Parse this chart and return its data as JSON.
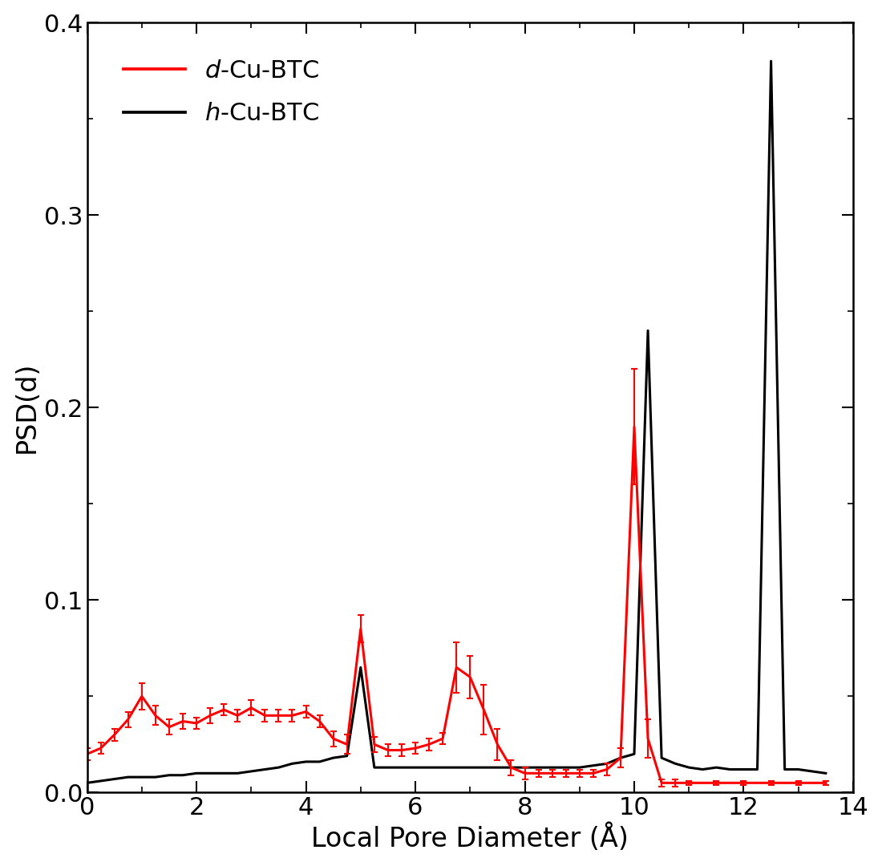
{
  "red_x": [
    0.0,
    0.25,
    0.5,
    0.75,
    1.0,
    1.25,
    1.5,
    1.75,
    2.0,
    2.25,
    2.5,
    2.75,
    3.0,
    3.25,
    3.5,
    3.75,
    4.0,
    4.25,
    4.5,
    4.75,
    5.0,
    5.25,
    5.5,
    5.75,
    6.0,
    6.25,
    6.5,
    6.75,
    7.0,
    7.25,
    7.5,
    7.75,
    8.0,
    8.25,
    8.5,
    8.75,
    9.0,
    9.25,
    9.5,
    9.75,
    10.0,
    10.25,
    10.5,
    10.75,
    11.0,
    11.5,
    12.0,
    12.5,
    13.0,
    13.5
  ],
  "red_y": [
    0.02,
    0.023,
    0.03,
    0.038,
    0.05,
    0.04,
    0.034,
    0.037,
    0.036,
    0.04,
    0.043,
    0.04,
    0.044,
    0.04,
    0.04,
    0.04,
    0.042,
    0.037,
    0.028,
    0.025,
    0.085,
    0.025,
    0.022,
    0.022,
    0.023,
    0.025,
    0.028,
    0.065,
    0.06,
    0.043,
    0.025,
    0.013,
    0.01,
    0.01,
    0.01,
    0.01,
    0.01,
    0.01,
    0.012,
    0.018,
    0.19,
    0.028,
    0.005,
    0.005,
    0.005,
    0.005,
    0.005,
    0.005,
    0.005,
    0.005
  ],
  "red_yerr": [
    0.003,
    0.003,
    0.003,
    0.004,
    0.007,
    0.005,
    0.004,
    0.004,
    0.003,
    0.004,
    0.003,
    0.003,
    0.004,
    0.003,
    0.003,
    0.003,
    0.003,
    0.003,
    0.004,
    0.005,
    0.007,
    0.004,
    0.003,
    0.003,
    0.003,
    0.003,
    0.003,
    0.013,
    0.011,
    0.013,
    0.008,
    0.004,
    0.003,
    0.002,
    0.002,
    0.002,
    0.002,
    0.002,
    0.003,
    0.005,
    0.03,
    0.01,
    0.002,
    0.002,
    0.001,
    0.001,
    0.001,
    0.001,
    0.001,
    0.001
  ],
  "black_x": [
    0.0,
    0.25,
    0.5,
    0.75,
    1.0,
    1.25,
    1.5,
    1.75,
    2.0,
    2.25,
    2.5,
    2.75,
    3.0,
    3.25,
    3.5,
    3.75,
    4.0,
    4.25,
    4.5,
    4.75,
    5.0,
    5.25,
    5.5,
    5.75,
    6.0,
    6.25,
    6.5,
    6.75,
    7.0,
    7.25,
    7.5,
    7.75,
    8.0,
    8.25,
    8.5,
    8.75,
    9.0,
    9.25,
    9.5,
    9.75,
    10.0,
    10.25,
    10.5,
    10.75,
    11.0,
    11.25,
    11.5,
    11.75,
    12.0,
    12.25,
    12.5,
    12.75,
    13.0,
    13.5
  ],
  "black_y": [
    0.005,
    0.006,
    0.007,
    0.008,
    0.008,
    0.008,
    0.009,
    0.009,
    0.01,
    0.01,
    0.01,
    0.01,
    0.011,
    0.012,
    0.013,
    0.015,
    0.016,
    0.016,
    0.018,
    0.019,
    0.065,
    0.013,
    0.013,
    0.013,
    0.013,
    0.013,
    0.013,
    0.013,
    0.013,
    0.013,
    0.013,
    0.013,
    0.013,
    0.013,
    0.013,
    0.013,
    0.013,
    0.014,
    0.015,
    0.018,
    0.02,
    0.24,
    0.018,
    0.015,
    0.013,
    0.012,
    0.013,
    0.012,
    0.012,
    0.012,
    0.38,
    0.012,
    0.012,
    0.01
  ],
  "xlabel": "Local Pore Diameter (Å)",
  "ylabel": "PSD(d)",
  "xlim": [
    0,
    14
  ],
  "ylim": [
    0,
    0.4
  ],
  "yticks": [
    0.0,
    0.1,
    0.2,
    0.3,
    0.4
  ],
  "xticks": [
    0,
    2,
    4,
    6,
    8,
    10,
    12,
    14
  ],
  "red_color": "#ff0000",
  "black_color": "#000000",
  "red_label": "$\\it{d}$-Cu-BTC",
  "black_label": "$\\it{h}$-Cu-BTC",
  "linewidth": 2.2,
  "errorbar_capsize": 3,
  "background_color": "#ffffff",
  "tick_fontsize": 22,
  "label_fontsize": 24,
  "legend_fontsize": 22
}
